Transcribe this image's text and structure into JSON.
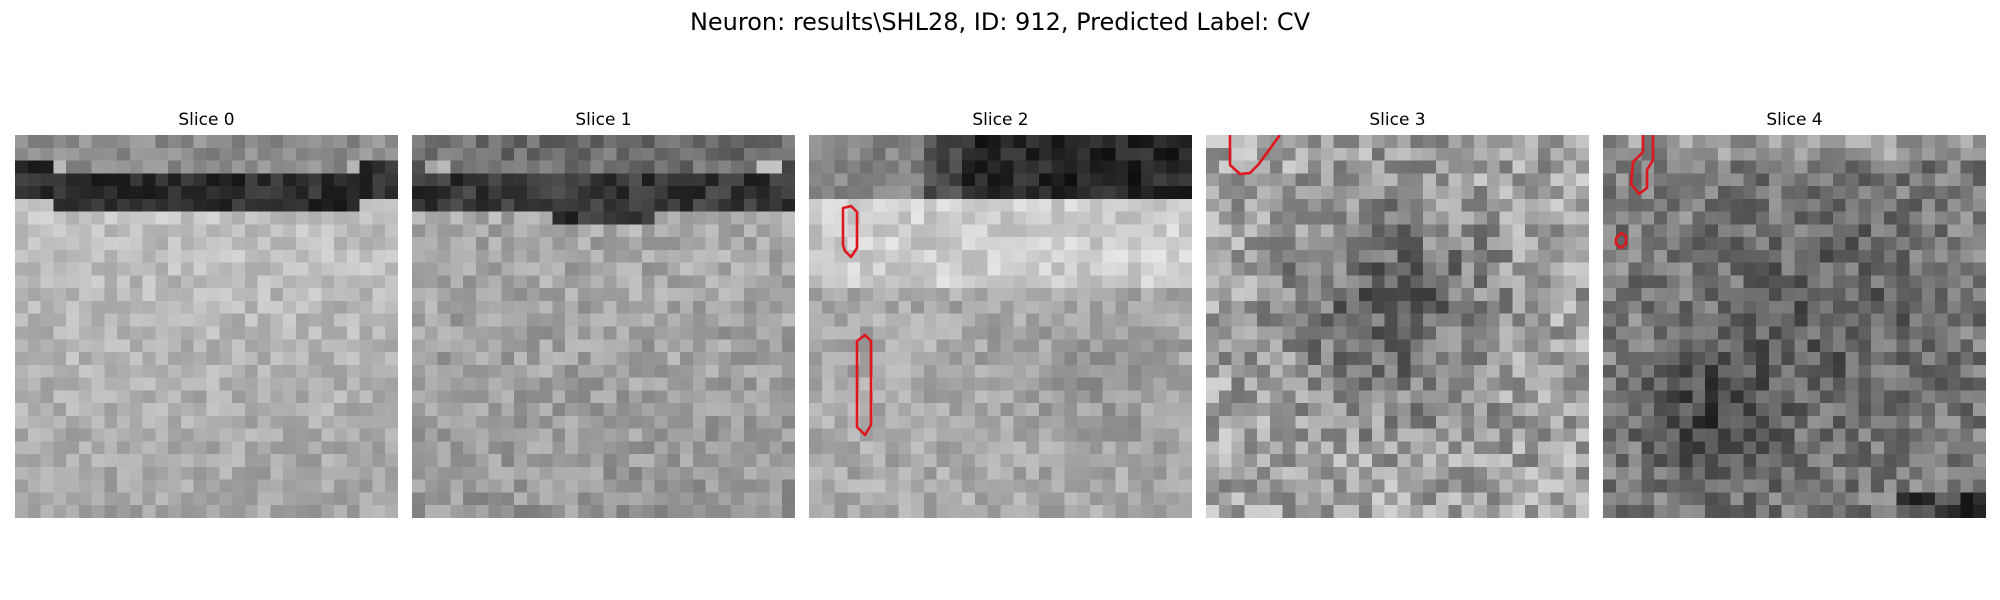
{
  "figure": {
    "title": "Neuron: results\\SHL28, ID: 912, Predicted Label: CV"
  },
  "colors": {
    "background": "#ffffff",
    "contour": "#e0161e"
  },
  "slices": [
    {
      "title": "Slice 0",
      "theme": "dark-membrane-top-light-below"
    },
    {
      "title": "Slice 1",
      "theme": "dark-membrane-top-light-below"
    },
    {
      "title": "Slice 2",
      "theme": "dark-band-top-with-two-red-contours"
    },
    {
      "title": "Slice 3",
      "theme": "noisy-gray-with-corner-contour"
    },
    {
      "title": "Slice 4",
      "theme": "noisy-dark-with-small-contours"
    }
  ]
}
